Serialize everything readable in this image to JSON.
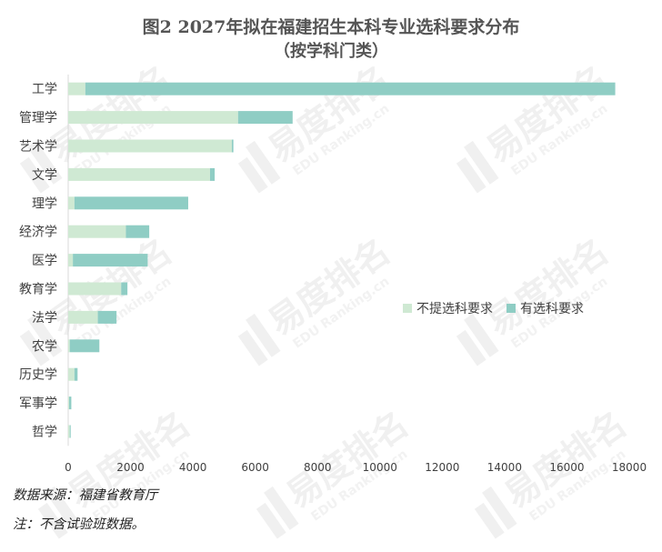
{
  "chart_data": {
    "type": "bar",
    "orientation": "horizontal",
    "stacked": true,
    "title": "图2 2027年拟在福建招生本科专业选科要求分布",
    "subtitle": "（按学科门类）",
    "categories": [
      "工学",
      "管理学",
      "艺术学",
      "文学",
      "理学",
      "经济学",
      "医学",
      "教育学",
      "法学",
      "农学",
      "历史学",
      "军事学",
      "哲学"
    ],
    "series": [
      {
        "name": "不提选科要求",
        "color": "#cfe9d3",
        "values": [
          550,
          5450,
          5250,
          4550,
          200,
          1850,
          150,
          1700,
          950,
          50,
          200,
          30,
          50
        ]
      },
      {
        "name": "有选科要求",
        "color": "#8fcdc4",
        "values": [
          17000,
          1750,
          50,
          150,
          3650,
          750,
          2400,
          200,
          600,
          950,
          100,
          70,
          30
        ]
      }
    ],
    "xlim": [
      0,
      18000
    ],
    "xticks": [
      0,
      2000,
      4000,
      6000,
      8000,
      10000,
      12000,
      14000,
      16000,
      18000
    ],
    "xlabel": "",
    "ylabel": "",
    "grid": false,
    "legend_position": "right"
  },
  "notes": {
    "source": "数据来源：福建省教育厅",
    "note": "注：不含试验班数据。"
  },
  "watermark": {
    "brand": "易度排名",
    "sub": "EDU Ranking.cn"
  }
}
